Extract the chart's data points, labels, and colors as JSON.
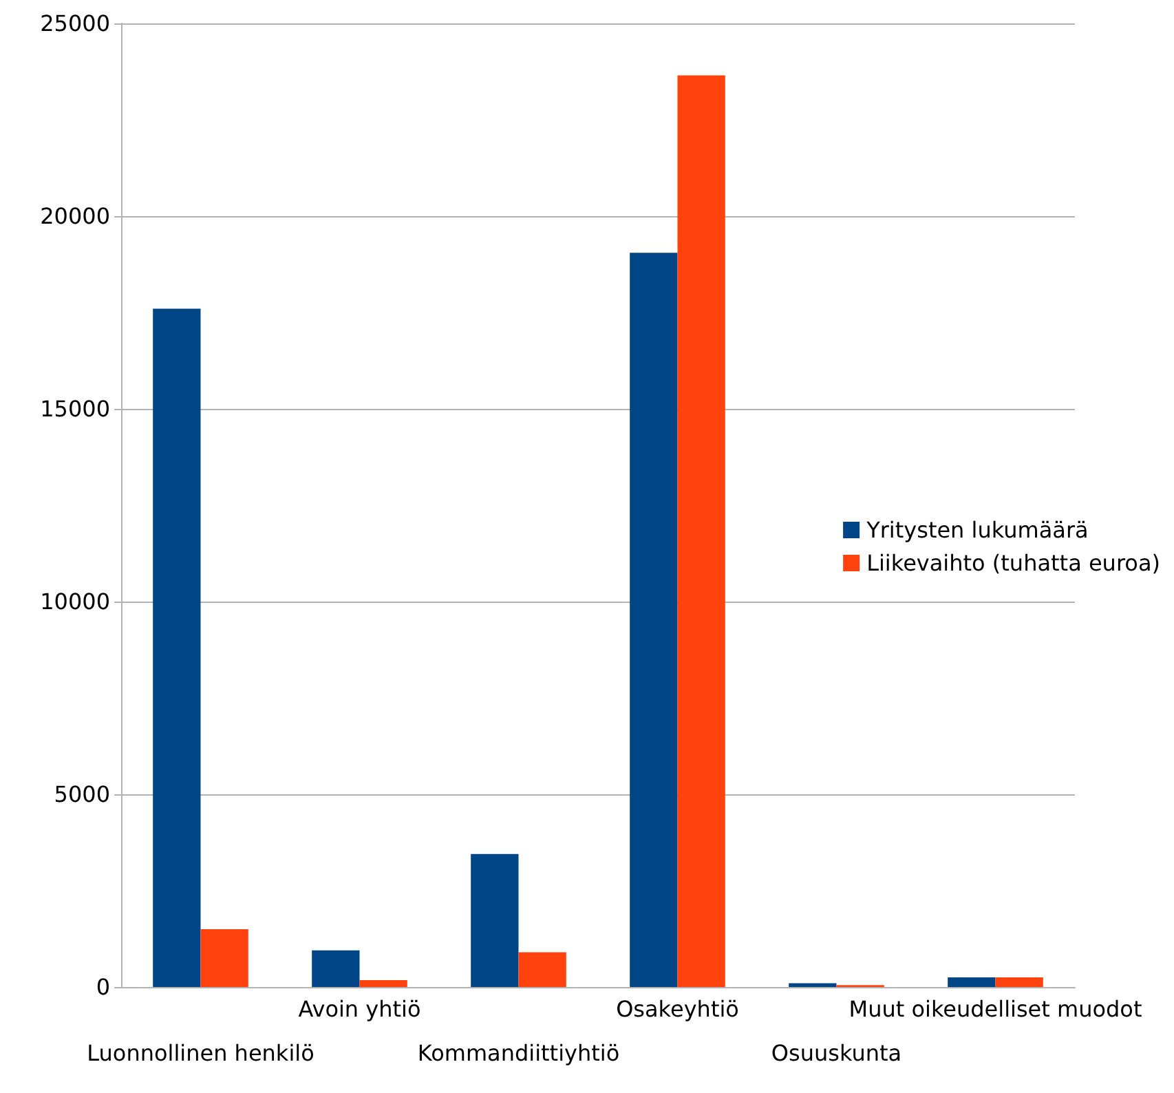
{
  "chart_data": {
    "type": "bar",
    "categories": [
      "Luonnollinen henkilö",
      "Avoin yhtiö",
      "Kommandiittiyhtiö",
      "Osakeyhtiö",
      "Osuuskunta",
      "Muut oikeudelliset muodot"
    ],
    "series": [
      {
        "name": "Yritysten lukumäärä",
        "color": "#004586",
        "values": [
          17600,
          950,
          3450,
          19050,
          100,
          250
        ]
      },
      {
        "name": "Liikevaihto (tuhatta euroa)",
        "color": "#ff420e",
        "values": [
          1500,
          180,
          900,
          23650,
          50,
          250
        ]
      }
    ],
    "ylim": [
      0,
      25000
    ],
    "yticks": [
      0,
      5000,
      10000,
      15000,
      20000,
      25000
    ],
    "grid": "y",
    "legend": "right"
  }
}
